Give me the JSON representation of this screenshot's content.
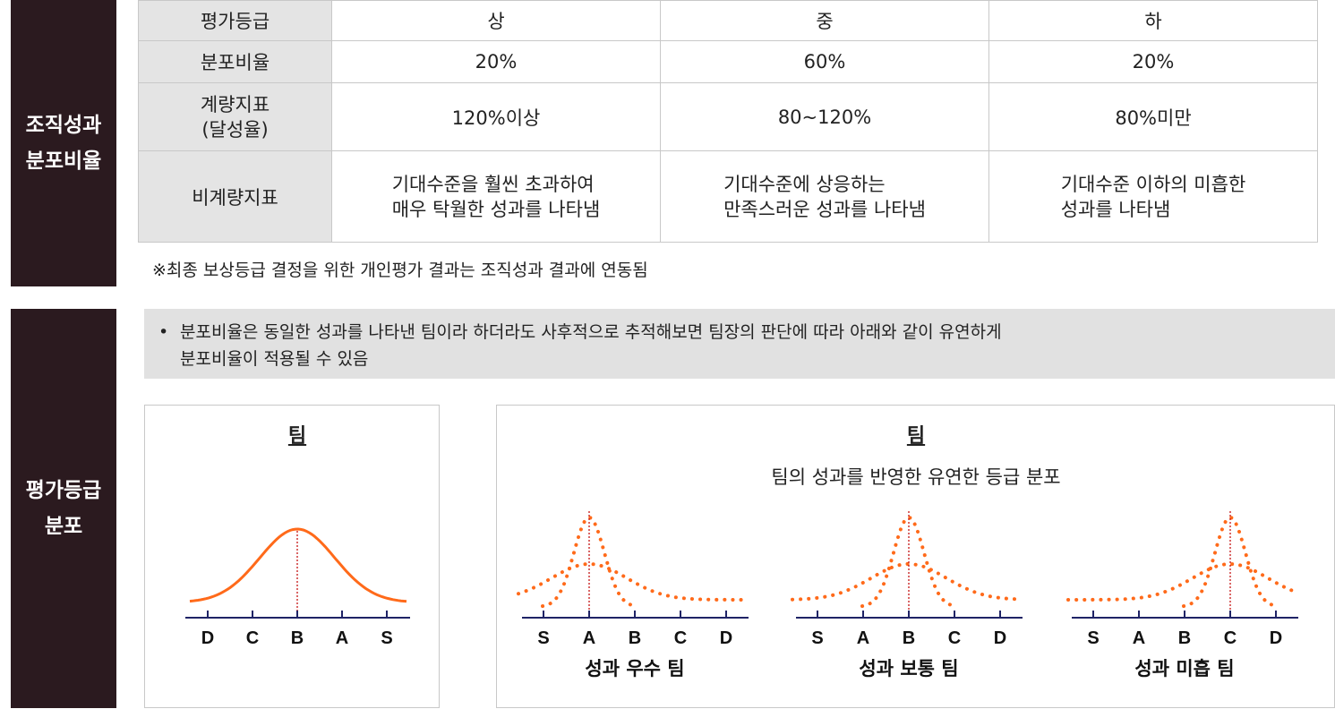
{
  "sections": {
    "org": {
      "label_lines": [
        "조직성과",
        "분포비율"
      ]
    },
    "grade": {
      "label_lines": [
        "평가등급",
        "분포"
      ]
    }
  },
  "table": {
    "rows": [
      {
        "header": [
          "평가등급"
        ],
        "cells": [
          [
            "상"
          ],
          [
            "중"
          ],
          [
            "하"
          ]
        ]
      },
      {
        "header": [
          "분포비율"
        ],
        "cells": [
          [
            "20%"
          ],
          [
            "60%"
          ],
          [
            "20%"
          ]
        ]
      },
      {
        "header": [
          "계량지표",
          "(달성율)"
        ],
        "cells": [
          [
            "120%이상"
          ],
          [
            "80~120%"
          ],
          [
            "80%미만"
          ]
        ]
      },
      {
        "header": [
          "비계량지표"
        ],
        "cells": [
          [
            "기대수준을 훨씬 초과하여",
            "매우 탁월한 성과를 나타냄"
          ],
          [
            "기대수준에 상응하는",
            "만족스러운 성과를 나타냄"
          ],
          [
            "기대수준 이하의 미흡한",
            "성과를 나타냄"
          ]
        ]
      }
    ]
  },
  "note": "※최종 보상등급 결정을 위한 개인평가 결과는 조직성과 결과에 연동됨",
  "banner": {
    "bullet": "•",
    "lines": [
      "분포비율은 동일한 성과를 나타낸 팀이라 하더라도 사후적으로 추적해보면 팀장의 판단에 따라 아래와 같이 유연하게",
      "분포비율이 적용될 수 있음"
    ]
  },
  "left_panel": {
    "title": "팀",
    "axis_labels": [
      "D",
      "C",
      "B",
      "A",
      "S"
    ]
  },
  "right_panel": {
    "title": "팀",
    "subtitle": "팀의 성과를 반영한 유연한 등급 분포",
    "charts": [
      {
        "caption": "성과 우수 팀",
        "axis_labels": [
          "S",
          "A",
          "B",
          "C",
          "D"
        ],
        "peak_index": 1
      },
      {
        "caption": "성과 보통 팀",
        "axis_labels": [
          "S",
          "A",
          "B",
          "C",
          "D"
        ],
        "peak_index": 2
      },
      {
        "caption": "성과 미흡 팀",
        "axis_labels": [
          "S",
          "A",
          "B",
          "C",
          "D"
        ],
        "peak_index": 3
      }
    ]
  },
  "colors": {
    "curve": "#ff6a1a",
    "axis": "#1f2366",
    "marker": "#c00000",
    "sidebar": "#2b1a1f"
  }
}
